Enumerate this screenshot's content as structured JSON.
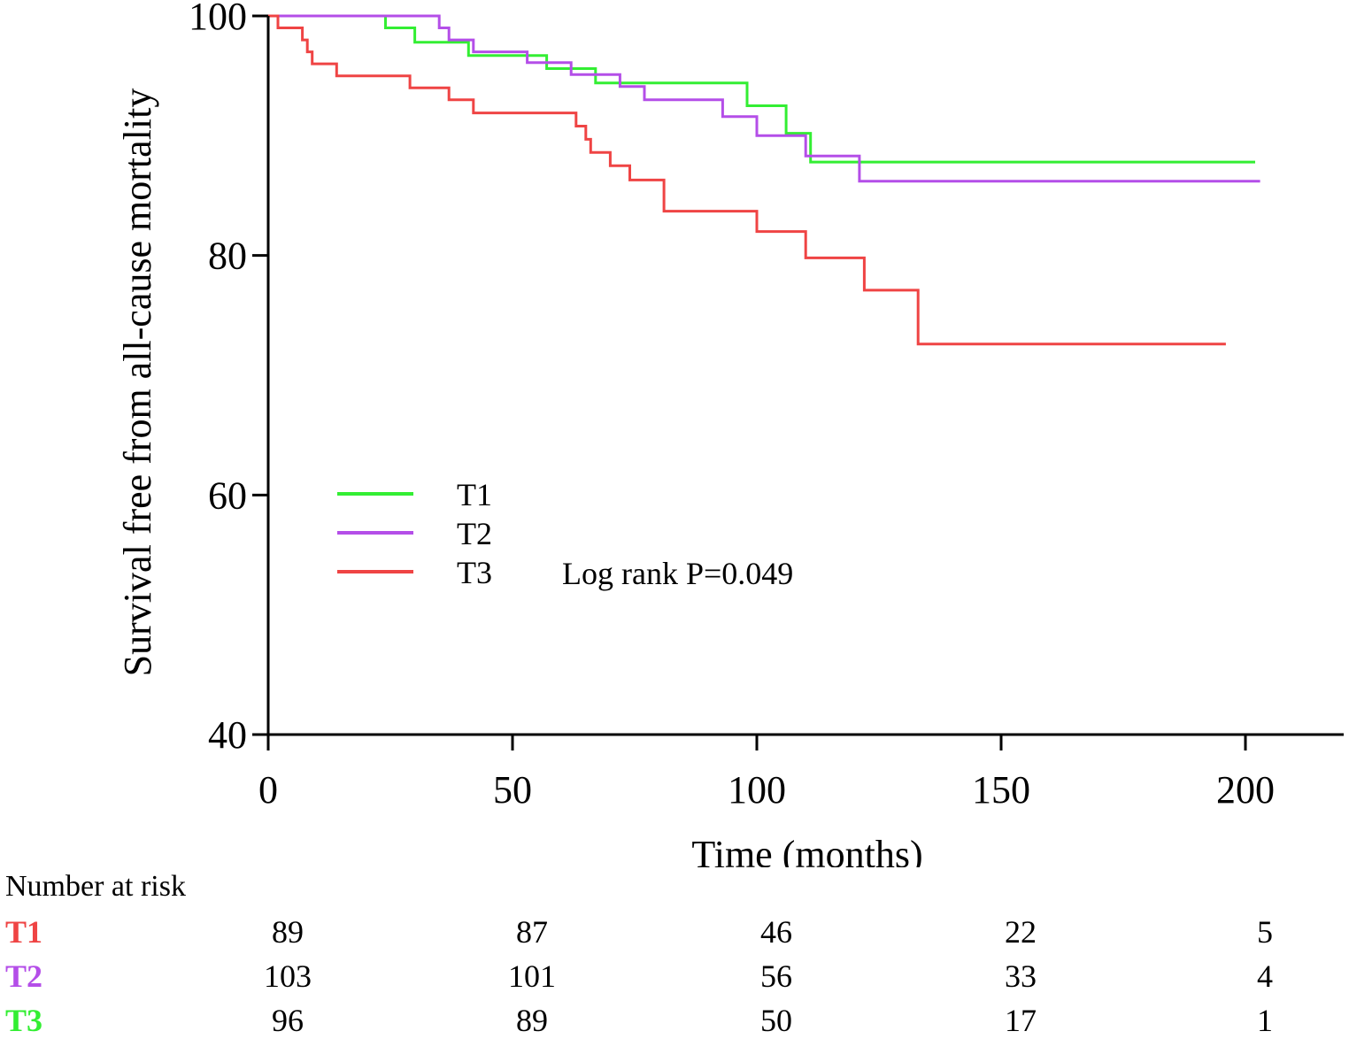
{
  "chart_data": {
    "type": "line",
    "title": "",
    "xlabel": "Time (months)",
    "ylabel": "Survival free from all-cause mortality",
    "xlim": [
      0,
      220
    ],
    "ylim": [
      40,
      100
    ],
    "xticks": [
      0,
      50,
      100,
      150,
      200
    ],
    "yticks": [
      40,
      60,
      80,
      100
    ],
    "grid": false,
    "legend_position": "center-left",
    "annotation": "Log rank P=0.049",
    "series": [
      {
        "name": "T1",
        "color": "#33ee33",
        "points": [
          [
            0,
            100
          ],
          [
            24,
            100
          ],
          [
            24,
            99
          ],
          [
            30,
            99
          ],
          [
            30,
            97.8
          ],
          [
            41,
            97.8
          ],
          [
            41,
            96.7
          ],
          [
            57,
            96.7
          ],
          [
            57,
            95.6
          ],
          [
            67,
            95.6
          ],
          [
            67,
            94.4
          ],
          [
            98,
            94.4
          ],
          [
            98,
            92.5
          ],
          [
            106,
            92.5
          ],
          [
            106,
            90.2
          ],
          [
            111,
            90.2
          ],
          [
            111,
            87.8
          ],
          [
            202,
            87.8
          ]
        ]
      },
      {
        "name": "T2",
        "color": "#b44ee8",
        "points": [
          [
            0,
            100
          ],
          [
            35,
            100
          ],
          [
            35,
            99
          ],
          [
            37,
            99
          ],
          [
            37,
            98
          ],
          [
            42,
            98
          ],
          [
            42,
            97
          ],
          [
            53,
            97
          ],
          [
            53,
            96.1
          ],
          [
            62,
            96.1
          ],
          [
            62,
            95.1
          ],
          [
            72,
            95.1
          ],
          [
            72,
            94.1
          ],
          [
            77,
            94.1
          ],
          [
            77,
            93
          ],
          [
            93,
            93
          ],
          [
            93,
            91.6
          ],
          [
            100,
            91.6
          ],
          [
            100,
            90
          ],
          [
            110,
            90
          ],
          [
            110,
            88.3
          ],
          [
            121,
            88.3
          ],
          [
            121,
            86.2
          ],
          [
            203,
            86.2
          ]
        ]
      },
      {
        "name": "T3",
        "color": "#ef4444",
        "points": [
          [
            0,
            100
          ],
          [
            2,
            100
          ],
          [
            2,
            99
          ],
          [
            7,
            99
          ],
          [
            7,
            98
          ],
          [
            8,
            98
          ],
          [
            8,
            97
          ],
          [
            9,
            97
          ],
          [
            9,
            96
          ],
          [
            14,
            96
          ],
          [
            14,
            95
          ],
          [
            29,
            95
          ],
          [
            29,
            94
          ],
          [
            37,
            94
          ],
          [
            37,
            93
          ],
          [
            42,
            93
          ],
          [
            42,
            91.9
          ],
          [
            63,
            91.9
          ],
          [
            63,
            90.8
          ],
          [
            65,
            90.8
          ],
          [
            65,
            89.7
          ],
          [
            66,
            89.7
          ],
          [
            66,
            88.6
          ],
          [
            70,
            88.6
          ],
          [
            70,
            87.5
          ],
          [
            74,
            87.5
          ],
          [
            74,
            86.3
          ],
          [
            81,
            86.3
          ],
          [
            81,
            83.7
          ],
          [
            100,
            83.7
          ],
          [
            100,
            82
          ],
          [
            110,
            82
          ],
          [
            110,
            79.8
          ],
          [
            122,
            79.8
          ],
          [
            122,
            77.1
          ],
          [
            133,
            77.1
          ],
          [
            133,
            72.6
          ],
          [
            196,
            72.6
          ]
        ]
      }
    ]
  },
  "risk_table": {
    "header": "Number at risk",
    "times": [
      0,
      50,
      100,
      150,
      200
    ],
    "rows": [
      {
        "label": "T1",
        "color": "#ef4444",
        "values": [
          "89",
          "87",
          "46",
          "22",
          "5"
        ]
      },
      {
        "label": "T2",
        "color": "#b44ee8",
        "values": [
          "103",
          "101",
          "56",
          "33",
          "4"
        ]
      },
      {
        "label": "T3",
        "color": "#33ee33",
        "values": [
          "96",
          "89",
          "50",
          "17",
          "1"
        ]
      }
    ]
  }
}
